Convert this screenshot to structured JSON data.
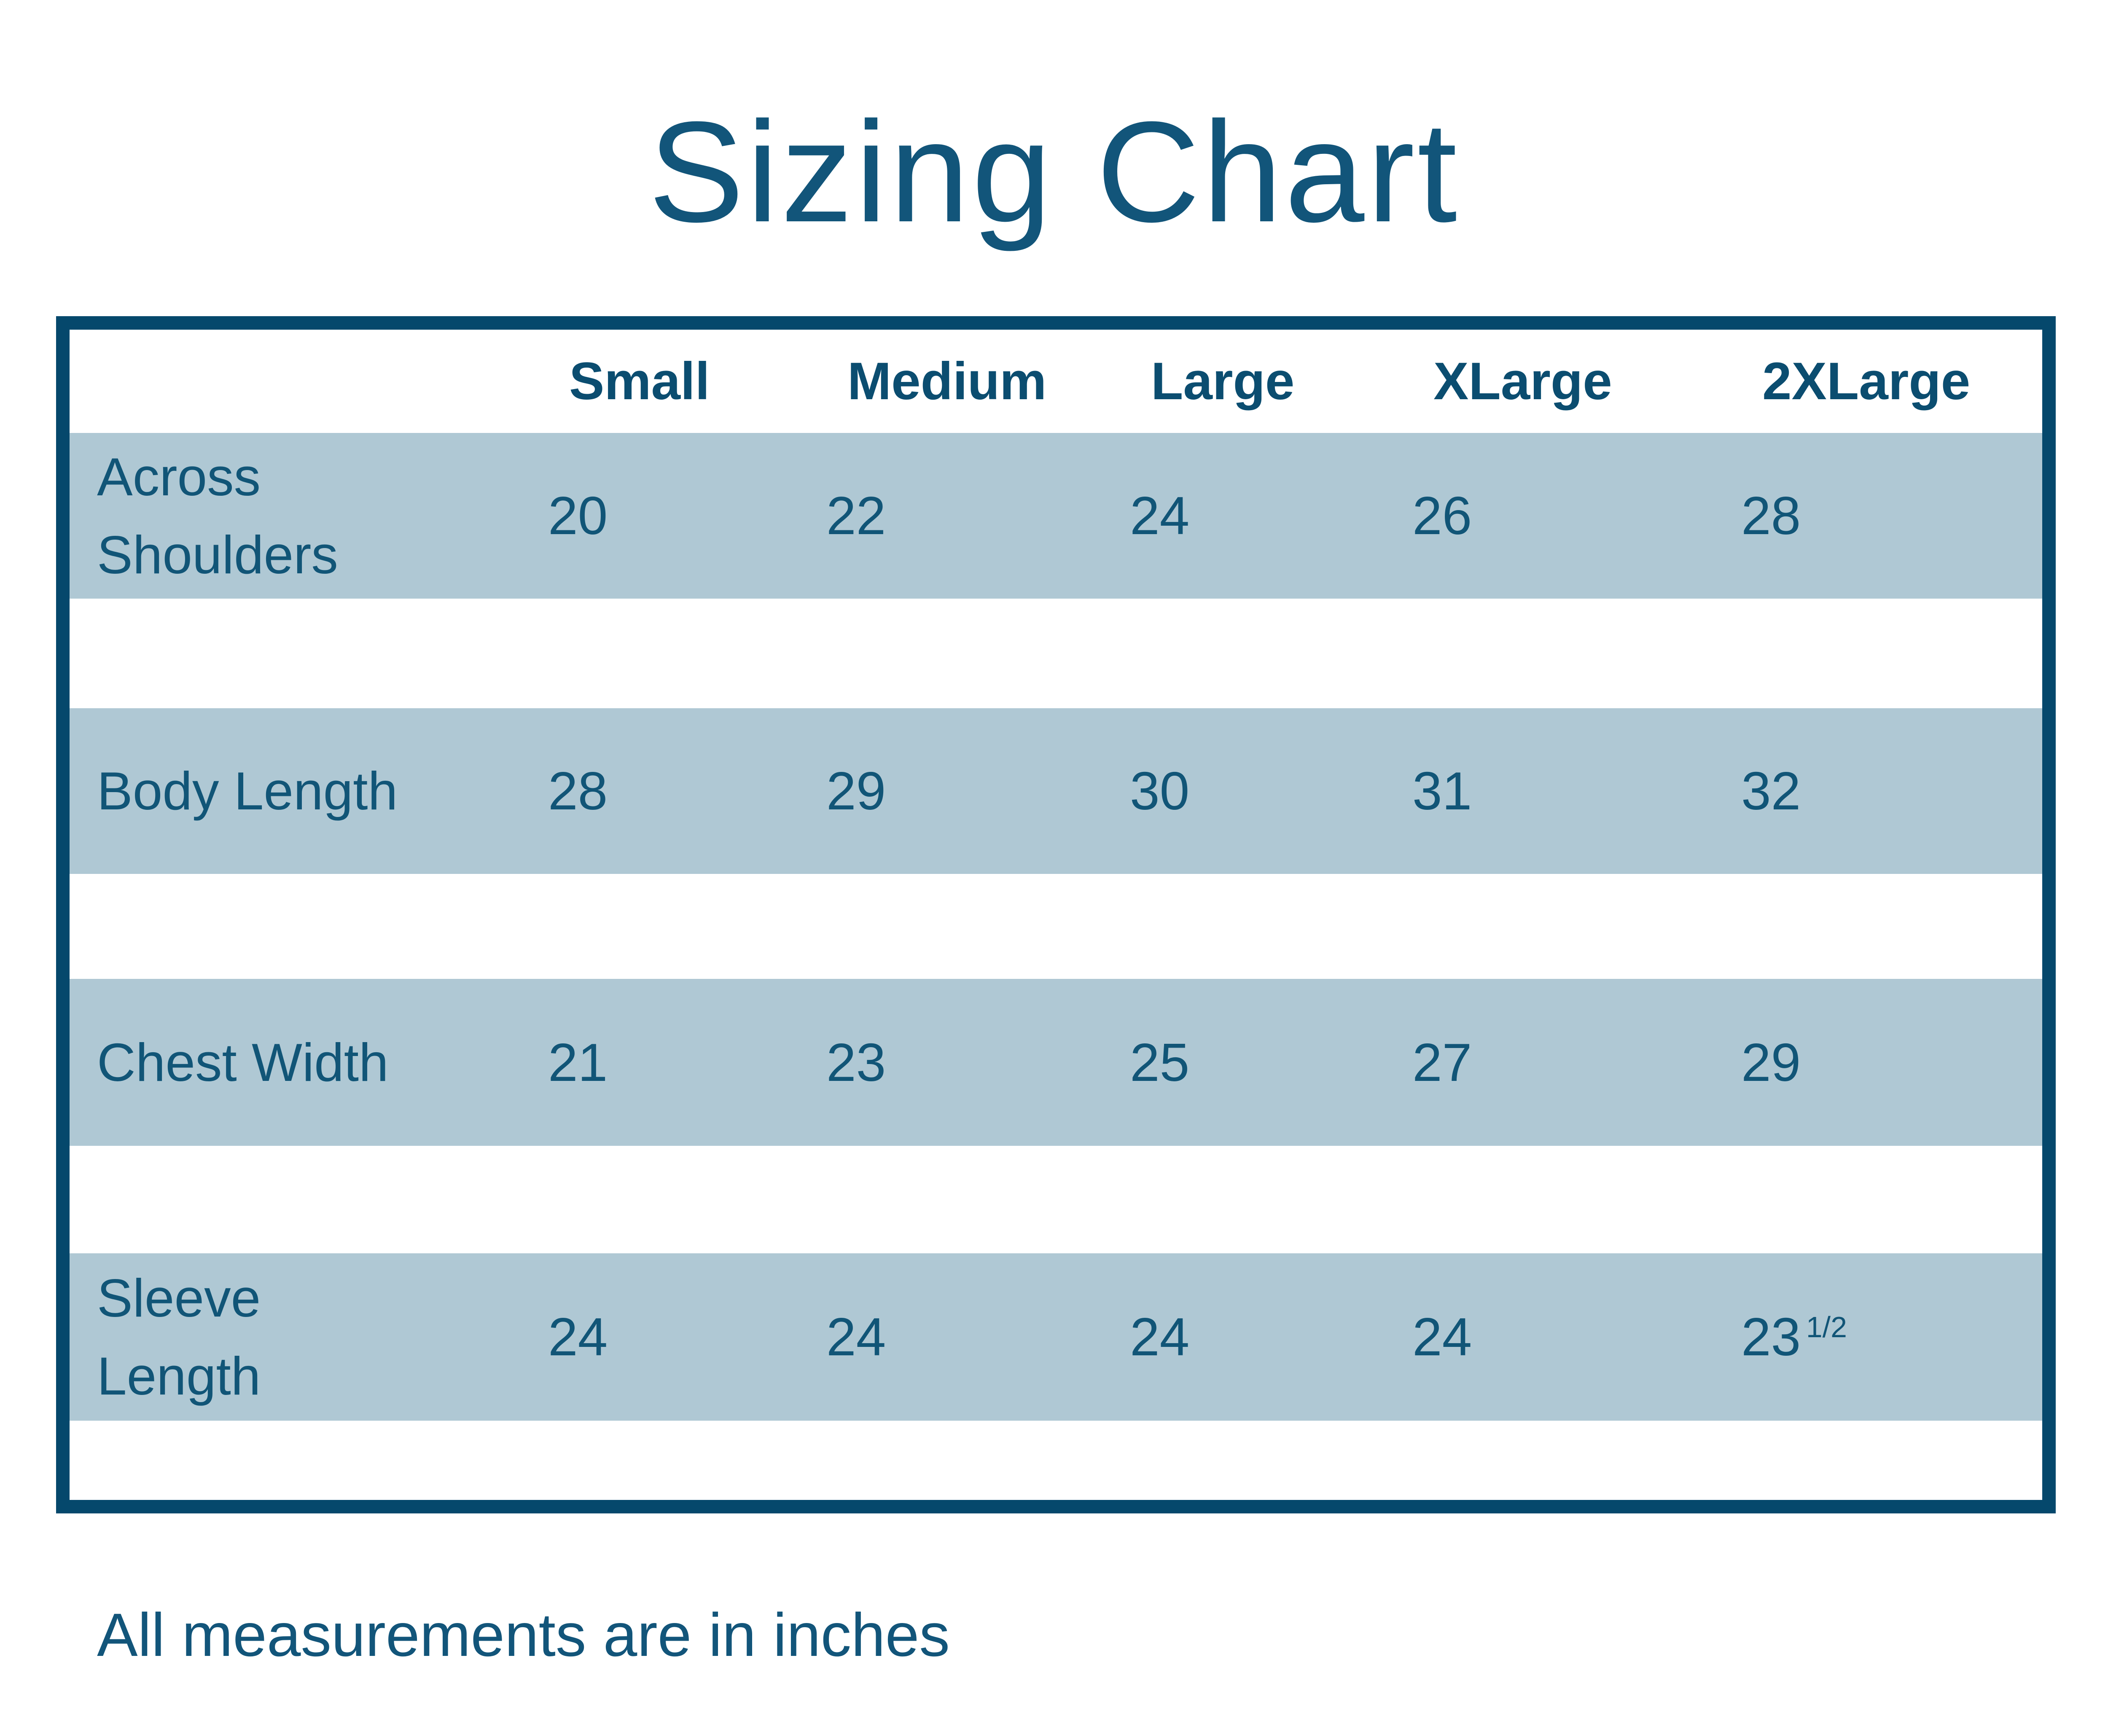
{
  "title": "Sizing Chart",
  "table": {
    "columns": [
      "Small",
      "Medium",
      "Large",
      "XLarge",
      "2XLarge"
    ],
    "rows": [
      {
        "label": "Across Shoulders",
        "values": [
          "20",
          "22",
          "24",
          "26",
          "28"
        ]
      },
      {
        "label": "Body Length",
        "values": [
          "28",
          "29",
          "30",
          "31",
          "32"
        ]
      },
      {
        "label": "Chest Width",
        "values": [
          "21",
          "23",
          "25",
          "27",
          "29"
        ]
      },
      {
        "label": "Sleeve Length",
        "values": [
          "24",
          "24",
          "24",
          "24",
          "23"
        ],
        "fraction": "1/2"
      }
    ]
  },
  "footer": {
    "note": "All measurements are in inches"
  },
  "colors": {
    "border": "#05486c",
    "stripe": "#afc8d4",
    "text": "#115577",
    "header_text": "#0b4d70",
    "background": "#ffffff"
  },
  "chart_data": {
    "type": "table",
    "title": "Sizing Chart",
    "columns": [
      "Small",
      "Medium",
      "Large",
      "XLarge",
      "2XLarge"
    ],
    "rows": [
      {
        "label": "Across Shoulders",
        "values": [
          20,
          22,
          24,
          26,
          28
        ]
      },
      {
        "label": "Body Length",
        "values": [
          28,
          29,
          30,
          31,
          32
        ]
      },
      {
        "label": "Chest Width",
        "values": [
          21,
          23,
          25,
          27,
          29
        ]
      },
      {
        "label": "Sleeve Length",
        "values": [
          24,
          24,
          24,
          24,
          23.5
        ]
      }
    ],
    "note": "All measurements are in inches",
    "units": "inches"
  }
}
